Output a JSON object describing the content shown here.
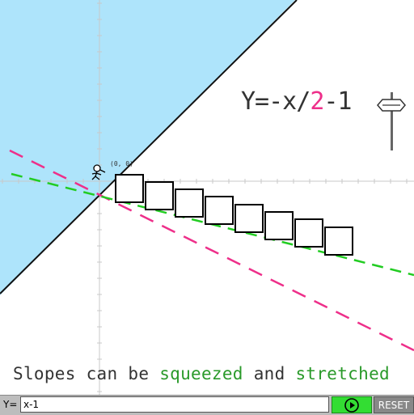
{
  "equation": {
    "prefix": "Y=-x/",
    "coefficient": "2",
    "suffix": "-1"
  },
  "origin_label": "(0, 0)",
  "hint": {
    "part1": "Slopes can be ",
    "word1": "squeezed",
    "part2": " and ",
    "word2": "stretched"
  },
  "bottom_bar": {
    "y_label": "Y=",
    "input_value": "x-1",
    "reset_label": "RESET"
  },
  "colors": {
    "accent": "#ee2f8a",
    "green_line": "#22cc22",
    "sky": "#aee4fb",
    "play": "#33dd33"
  },
  "icons": {
    "play": "play-icon",
    "character": "stick-figure-icon",
    "slider_knob": "slider-knob-icon"
  },
  "game": {
    "lines": [
      {
        "name": "boundary",
        "expr": "y=x",
        "style": "solid"
      },
      {
        "name": "target",
        "expr": "y=-x/2-1",
        "style": "dashed-pink"
      },
      {
        "name": "current",
        "expr": "y=-x/4-0.5",
        "style": "dashed-green"
      }
    ],
    "boxes": 8
  }
}
